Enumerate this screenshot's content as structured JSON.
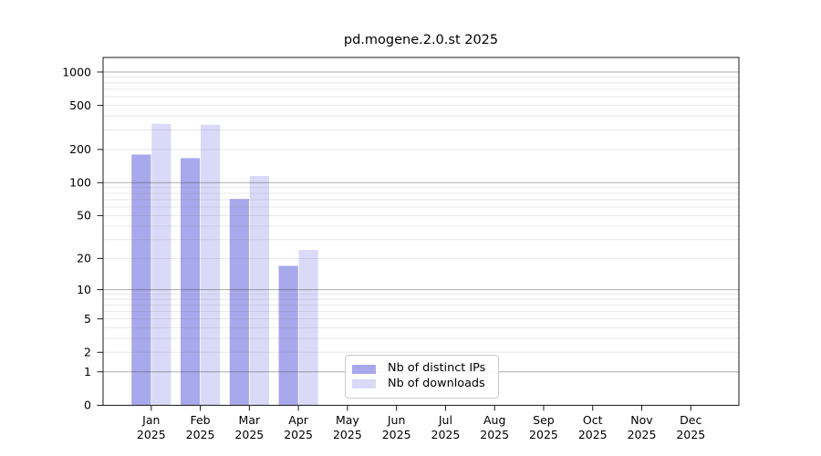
{
  "chart_data": {
    "type": "bar",
    "title": "pd.mogene.2.0.st 2025",
    "year_label": "2025",
    "categories": [
      "Jan",
      "Feb",
      "Mar",
      "Apr",
      "May",
      "Jun",
      "Jul",
      "Aug",
      "Sep",
      "Oct",
      "Nov",
      "Dec"
    ],
    "series": [
      {
        "name": "Nb of distinct IPs",
        "color": "#a8a8ec",
        "values": [
          180,
          167,
          71,
          17,
          0,
          0,
          0,
          0,
          0,
          0,
          0,
          0
        ]
      },
      {
        "name": "Nb of downloads",
        "color": "#dadaf8",
        "values": [
          341,
          335,
          115,
          24,
          0,
          0,
          0,
          0,
          0,
          0,
          0,
          0
        ]
      }
    ],
    "yscale": "log10(1+x)",
    "ylim": [
      0,
      1353
    ],
    "yticks": [
      0,
      1,
      2,
      5,
      10,
      20,
      50,
      100,
      200,
      500,
      1000
    ],
    "grid": {
      "major": [
        1,
        10,
        100,
        1000
      ],
      "minor_multiples": [
        2,
        3,
        4,
        5,
        6,
        7,
        8,
        9
      ],
      "minor_decades": [
        1,
        10,
        100
      ]
    },
    "legend_position": "lower center",
    "colors": {
      "spine": "#1a1a1a",
      "tick_label": "#000000",
      "grid_major": "rgba(60,60,60,0.42)",
      "grid_minor": "rgba(120,120,120,0.17)"
    }
  }
}
